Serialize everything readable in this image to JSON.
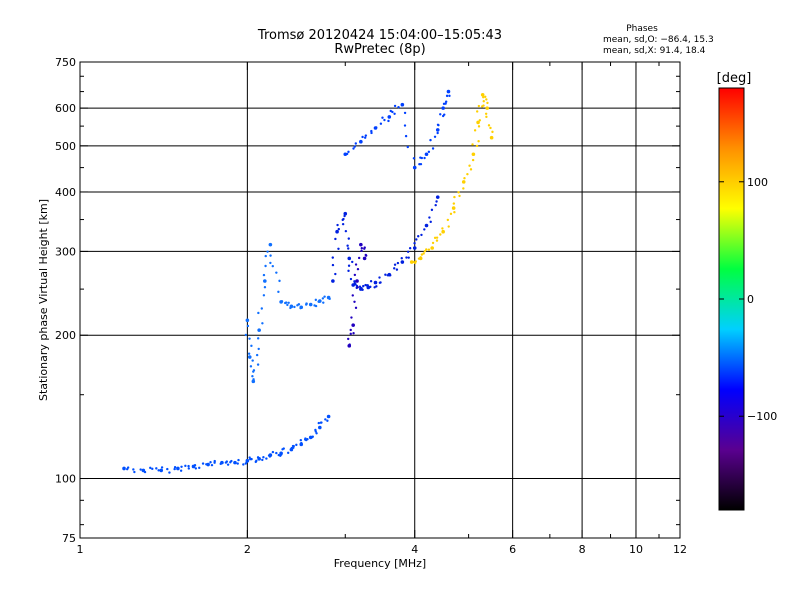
{
  "chart_data": {
    "type": "scatter",
    "title": "Tromsø 20120424 15:04:00–15:05:43",
    "subtitle": "RwPretec (8p)",
    "stats": {
      "heading": "Phases",
      "line1": "mean, sd,O: −86.4, 15.3",
      "line2": "mean, sd,X:  91.4, 18.4"
    },
    "xlabel": "Frequency [MHz]",
    "ylabel": "Stationary phase Virtual Height [km]",
    "x_scale": "log",
    "y_scale": "log",
    "xlim": [
      1,
      12
    ],
    "ylim": [
      75,
      750
    ],
    "x_ticks": [
      1,
      2,
      4,
      6,
      8,
      10,
      12
    ],
    "x_tick_labels": [
      "1",
      "2",
      "4",
      "6",
      "8",
      "10",
      "12"
    ],
    "x_minor_ticks": [
      3,
      5,
      7,
      9,
      11
    ],
    "y_ticks": [
      75,
      100,
      200,
      300,
      400,
      500,
      600,
      750
    ],
    "y_tick_labels": [
      "75",
      "100",
      "200",
      "300",
      "400",
      "500",
      "600",
      "750"
    ],
    "y_minor_ticks": [
      80,
      90,
      150,
      250,
      350,
      450,
      550,
      650,
      700
    ],
    "grid": true,
    "grid_x": [
      2,
      4,
      6,
      8,
      10
    ],
    "grid_y": [
      100,
      200,
      300,
      400,
      500,
      600
    ],
    "colorbar": {
      "label": "[deg]",
      "range": [
        -180,
        180
      ],
      "ticks": [
        100,
        0,
        -100
      ],
      "tick_labels": [
        "100",
        "0",
        "−100"
      ],
      "colormap": "rainbow",
      "colors": [
        "#000000",
        "#5a0090",
        "#0000ff",
        "#00d0ff",
        "#00ff40",
        "#ffff00",
        "#ff9000",
        "#ff0000"
      ]
    },
    "series": [
      {
        "color": "#0050ff",
        "x": [
          1.2,
          1.3,
          1.4,
          1.5,
          1.6,
          1.7,
          1.8,
          1.9,
          2.0,
          2.1,
          2.2,
          2.3,
          2.4,
          2.5,
          2.6,
          2.7,
          2.8
        ],
        "y": [
          105,
          104,
          104,
          105,
          106,
          107,
          108,
          108,
          109,
          110,
          112,
          113,
          115,
          118,
          122,
          128,
          135
        ]
      },
      {
        "color": "#1070ff",
        "x": [
          2.0,
          2.02,
          2.05,
          2.1,
          2.15,
          2.2,
          2.3,
          2.4,
          2.5,
          2.6,
          2.7,
          2.8
        ],
        "y": [
          215,
          180,
          160,
          205,
          260,
          310,
          235,
          230,
          229,
          232,
          236,
          240
        ]
      },
      {
        "color": "#0020e0",
        "x": [
          2.85,
          2.9,
          3.0,
          3.05,
          3.1,
          3.2,
          3.3,
          3.4,
          3.6,
          3.8,
          4.0,
          4.2,
          4.4
        ],
        "y": [
          260,
          330,
          360,
          290,
          255,
          250,
          252,
          258,
          268,
          285,
          305,
          340,
          390
        ]
      },
      {
        "color": "#2000c0",
        "x": [
          3.05,
          3.1,
          3.15,
          3.2,
          3.25
        ],
        "y": [
          190,
          210,
          260,
          310,
          290
        ]
      },
      {
        "color": "#0040ff",
        "x": [
          3.0,
          3.2,
          3.4,
          3.6,
          3.8,
          4.0,
          4.2,
          4.4,
          4.5,
          4.6
        ],
        "y": [
          480,
          510,
          545,
          575,
          610,
          450,
          480,
          540,
          600,
          650
        ]
      },
      {
        "color": "#ffd000",
        "x": [
          3.95,
          4.1,
          4.3,
          4.5,
          4.7,
          4.9,
          5.1,
          5.2,
          5.3,
          5.4,
          5.5
        ],
        "y": [
          285,
          290,
          305,
          330,
          370,
          420,
          480,
          560,
          640,
          600,
          520
        ]
      }
    ]
  }
}
